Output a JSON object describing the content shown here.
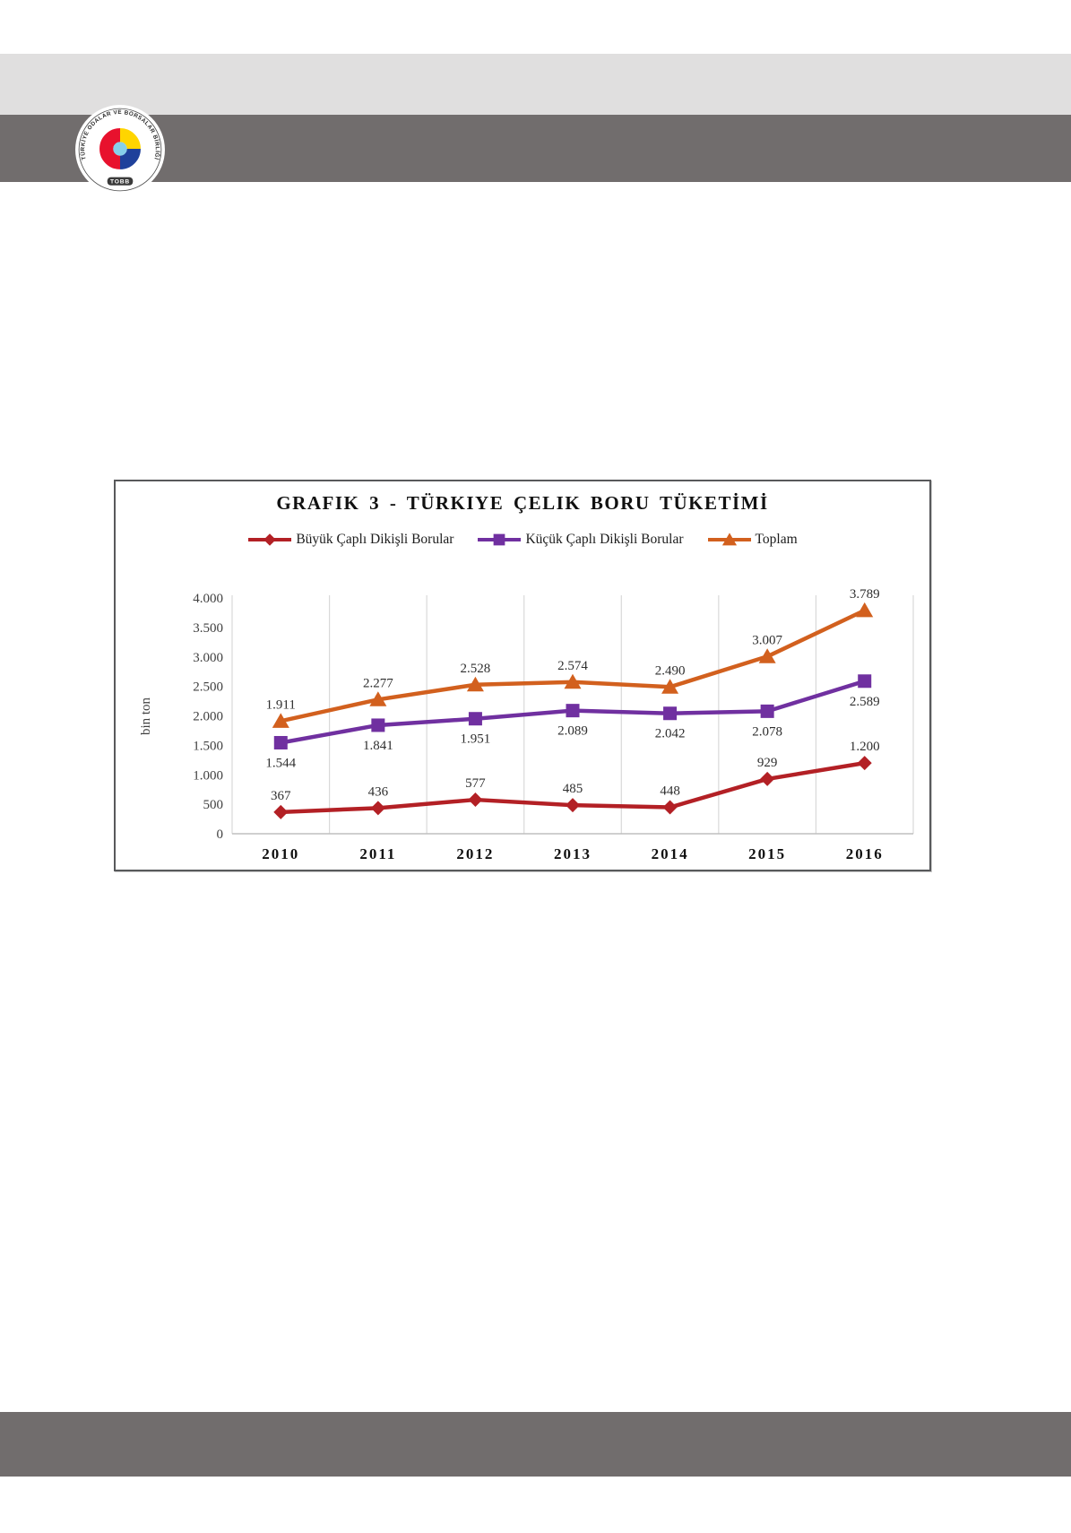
{
  "page": {
    "header": {
      "light_band_color": "#e0dfdf",
      "dark_band_color": "#716d6d",
      "logo": {
        "ring_text": "TÜRKİYE ODALAR VE BORSALAR BİRLİĞİ",
        "bottom_text": "TOBB",
        "colors": {
          "red": "#e8112d",
          "yellow": "#ffd500",
          "blue": "#1f419b",
          "light_blue": "#86cfea"
        }
      }
    },
    "footer": {
      "dark_band_color": "#716d6d"
    }
  },
  "chart_data": {
    "type": "line",
    "title": "GRAFIK 3 - TÜRKIYE ÇELIK BORU TÜKETİMİ",
    "ylabel": "bin ton",
    "xlabel": "",
    "categories": [
      "2010",
      "2011",
      "2012",
      "2013",
      "2014",
      "2015",
      "2016"
    ],
    "ylim": [
      0,
      4000
    ],
    "ytick_values": [
      0,
      500,
      1000,
      1500,
      2000,
      2500,
      3000,
      3500,
      4000
    ],
    "ytick_labels": [
      "0",
      "500",
      "1.000",
      "1.500",
      "2.000",
      "2.500",
      "3.000",
      "3.500",
      "4.000"
    ],
    "grid": "vertical-only",
    "gridline_color": "#d9d9d9",
    "axis_line_color": "#bfbfbf",
    "legend_position": "top",
    "series": [
      {
        "name": "Büyük Çaplı Dikişli Borular",
        "color": "#b32025",
        "marker": "diamond",
        "values": [
          367,
          436,
          577,
          485,
          448,
          929,
          1200
        ],
        "labels": [
          "367",
          "436",
          "577",
          "485",
          "448",
          "929",
          "1.200"
        ],
        "label_position": "above"
      },
      {
        "name": "Küçük Çaplı Dikişli Borular",
        "color": "#7030a0",
        "marker": "square",
        "values": [
          1544,
          1841,
          1951,
          2089,
          2042,
          2078,
          2589
        ],
        "labels": [
          "1.544",
          "1.841",
          "1.951",
          "2.089",
          "2.042",
          "2.078",
          "2.589"
        ],
        "label_position": "below"
      },
      {
        "name": "Toplam",
        "color": "#d2601e",
        "marker": "triangle",
        "values": [
          1911,
          2277,
          2528,
          2574,
          2490,
          3007,
          3789
        ],
        "labels": [
          "1.911",
          "2.277",
          "2.528",
          "2.574",
          "2.490",
          "3.007",
          "3.789"
        ],
        "label_position": "above"
      }
    ]
  }
}
